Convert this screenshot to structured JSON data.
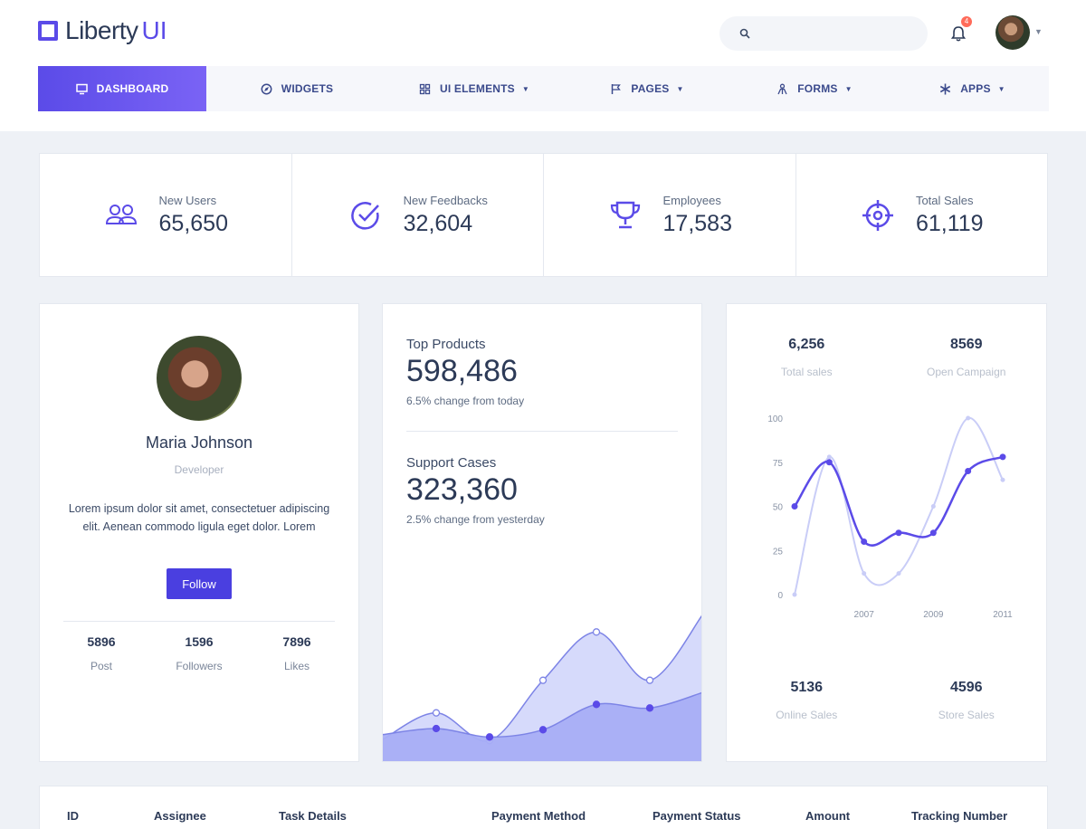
{
  "brand": {
    "name": "Liberty",
    "accent": "UI",
    "color": "#5b4be8"
  },
  "header": {
    "search_placeholder": "",
    "notification_count": "4",
    "user_avatar": "avatar"
  },
  "nav": [
    {
      "label": "DASHBOARD",
      "icon": "monitor-icon",
      "active": true
    },
    {
      "label": "WIDGETS",
      "icon": "compass-icon"
    },
    {
      "label": "UI ELEMENTS",
      "icon": "grid-icon",
      "dropdown": true
    },
    {
      "label": "PAGES",
      "icon": "flag-icon",
      "dropdown": true
    },
    {
      "label": "FORMS",
      "icon": "person-icon",
      "dropdown": true
    },
    {
      "label": "APPS",
      "icon": "asterisk-icon",
      "dropdown": true
    }
  ],
  "stats": [
    {
      "label": "New Users",
      "value": "65,650",
      "icon": "users-icon"
    },
    {
      "label": "New Feedbacks",
      "value": "32,604",
      "icon": "check-circle-icon"
    },
    {
      "label": "Employees",
      "value": "17,583",
      "icon": "trophy-icon"
    },
    {
      "label": "Total Sales",
      "value": "61,119",
      "icon": "crosshair-icon"
    }
  ],
  "profile": {
    "name": "Maria Johnson",
    "role": "Developer",
    "bio": "Lorem ipsum dolor sit amet, consectetuer adipiscing elit. Aenean commodo ligula eget dolor. Lorem",
    "follow_label": "Follow",
    "stats": [
      {
        "value": "5896",
        "label": "Post"
      },
      {
        "value": "1596",
        "label": "Followers"
      },
      {
        "value": "7896",
        "label": "Likes"
      }
    ]
  },
  "products": {
    "top_label": "Top Products",
    "top_value": "598,486",
    "top_change": "6.5% change from today",
    "support_label": "Support Cases",
    "support_value": "323,360",
    "support_change": "2.5% change from yesterday"
  },
  "sales": {
    "total_value": "6,256",
    "total_label": "Total sales",
    "campaign_value": "8569",
    "campaign_label": "Open Campaign",
    "online_value": "5136",
    "online_label": "Online Sales",
    "store_value": "4596",
    "store_label": "Store Sales"
  },
  "table": {
    "columns": [
      "ID",
      "Assignee",
      "Task Details",
      "Payment Method",
      "Payment Status",
      "Amount",
      "Tracking Number"
    ]
  },
  "chart_data": [
    {
      "type": "area",
      "x": [
        1,
        2,
        3,
        4,
        5,
        6,
        7
      ],
      "series": [
        {
          "values": [
            6,
            28,
            5,
            55,
            95,
            55,
            110
          ]
        },
        {
          "values": [
            10,
            15,
            8,
            14,
            35,
            32,
            45
          ]
        }
      ],
      "colors": [
        "#d4d8fb",
        "#a8aef5"
      ]
    },
    {
      "type": "line",
      "x": [
        2005,
        2006,
        2007,
        2008,
        2009,
        2010,
        2011
      ],
      "x_ticks": [
        "2007",
        "2009",
        "2011"
      ],
      "y_ticks": [
        0,
        25,
        50,
        75,
        100
      ],
      "ylim": [
        0,
        100
      ],
      "series": [
        {
          "values": [
            50,
            75,
            30,
            35,
            35,
            70,
            78
          ],
          "color": "#5b4be8"
        },
        {
          "values": [
            0,
            78,
            12,
            12,
            50,
            100,
            65
          ],
          "color": "#c9cdf7"
        }
      ]
    }
  ]
}
